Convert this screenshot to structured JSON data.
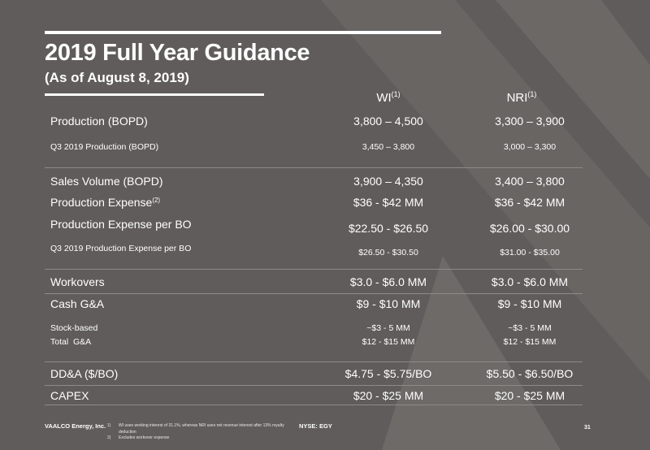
{
  "slide": {
    "title": "2019 Full Year Guidance",
    "subtitle": "(As of August 8, 2019)",
    "col_headers": [
      {
        "label": "WI",
        "sup": "(1)"
      },
      {
        "label": "NRI",
        "sup": "(1)"
      }
    ],
    "rows": [
      {
        "label": "Production (BOPD)",
        "wi": "3,800 – 4,500",
        "nri": "3,300 – 3,900"
      },
      {
        "label": "Q3 2019 Production (BOPD)",
        "wi": "3,450 – 3,800",
        "nri": "3,000 – 3,300"
      },
      {
        "label": "Sales Volume (BOPD)",
        "wi": "3,900 – 4,350",
        "nri": "3,400 – 3,800"
      },
      {
        "label": "Production Expense",
        "sup": "(2)",
        "wi": "$36 - $42 MM",
        "nri": "$36 - $42 MM"
      },
      {
        "label": "Production Expense per BO",
        "wi": "$22.50 - $26.50",
        "nri": "$26.00 - $30.00"
      },
      {
        "label": "Q3 2019 Production Expense per BO",
        "wi": "$26.50 - $30.50",
        "nri": "$31.00 - $35.00"
      },
      {
        "label": "Workovers",
        "wi": "$3.0 - $6.0 MM",
        "nri": "$3.0 - $6.0 MM"
      },
      {
        "label": "Cash G&A",
        "wi": "$9 - $10 MM",
        "nri": "$9 - $10 MM"
      },
      {
        "label": "Stock-based",
        "wi": "~$3 - 5 MM",
        "nri": "~$3 - 5 MM"
      },
      {
        "label": "Total  G&A",
        "wi": "$12 - $15 MM",
        "nri": "$12 - $15 MM"
      },
      {
        "label": "DD&A ($/BO)",
        "wi": "$4.75 - $5.75/BO",
        "nri": "$5.50 - $6.50/BO"
      },
      {
        "label": "CAPEX",
        "wi": "$20 - $25 MM",
        "nri": "$20 - $25 MM"
      }
    ]
  },
  "footer": {
    "company": "VAALCO Energy, Inc.",
    "notes": [
      {
        "num": "1)",
        "text": "WI uses working interest of 31.1%, whereas NRI uses net revenue interest after 13% royalty deduction"
      },
      {
        "num": "2)",
        "text": "Excludes workover expense"
      }
    ],
    "ticker": "NYSE: EGY",
    "page": "31"
  },
  "colors": {
    "background": "#5f5c5b",
    "accent_shape": "#6f6c6a",
    "text": "#ffffff",
    "divider": "#8d8a88"
  }
}
